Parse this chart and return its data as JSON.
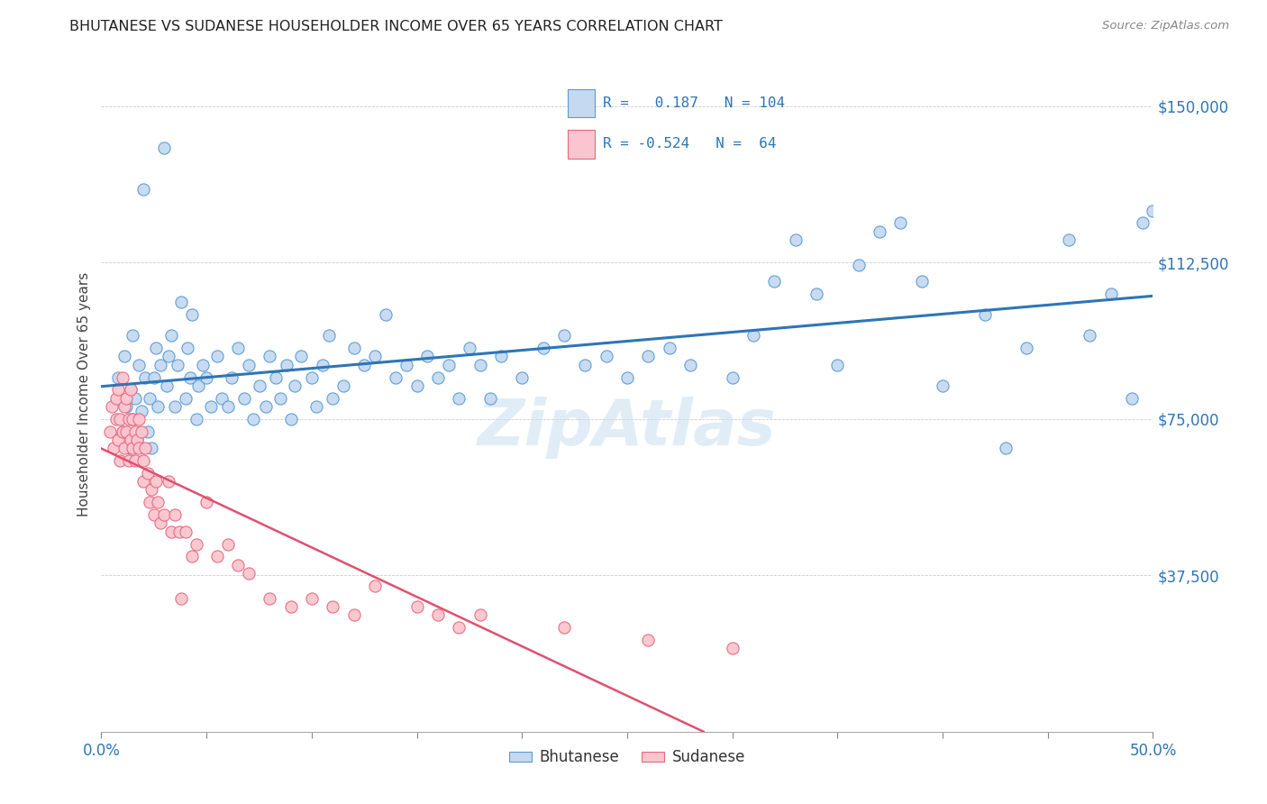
{
  "title": "BHUTANESE VS SUDANESE HOUSEHOLDER INCOME OVER 65 YEARS CORRELATION CHART",
  "source": "Source: ZipAtlas.com",
  "ylabel": "Householder Income Over 65 years",
  "ytick_labels": [
    "$37,500",
    "$75,000",
    "$112,500",
    "$150,000"
  ],
  "ytick_values": [
    37500,
    75000,
    112500,
    150000
  ],
  "ymin": 0,
  "ymax": 162000,
  "xmin": 0.0,
  "xmax": 0.5,
  "bhutanese_fill": "#c5d9f0",
  "bhutanese_edge": "#5b9bd5",
  "sudanese_fill": "#f9c6d0",
  "sudanese_edge": "#e8687c",
  "bhutanese_line_color": "#2e75b6",
  "sudanese_line_color": "#e05070",
  "text_color_blue": "#2e75b6",
  "tick_color": "#2e75b6",
  "watermark": "ZipAtlas",
  "bhutanese_R": 0.187,
  "bhutanese_N": 104,
  "sudanese_R": -0.524,
  "sudanese_N": 64,
  "bhutanese_scatter_x": [
    0.008,
    0.01,
    0.011,
    0.012,
    0.013,
    0.014,
    0.015,
    0.015,
    0.016,
    0.017,
    0.018,
    0.019,
    0.02,
    0.021,
    0.022,
    0.023,
    0.024,
    0.025,
    0.026,
    0.027,
    0.028,
    0.03,
    0.031,
    0.032,
    0.033,
    0.035,
    0.036,
    0.038,
    0.04,
    0.041,
    0.042,
    0.043,
    0.045,
    0.046,
    0.048,
    0.05,
    0.052,
    0.055,
    0.057,
    0.06,
    0.062,
    0.065,
    0.068,
    0.07,
    0.072,
    0.075,
    0.078,
    0.08,
    0.083,
    0.085,
    0.088,
    0.09,
    0.092,
    0.095,
    0.1,
    0.102,
    0.105,
    0.108,
    0.11,
    0.115,
    0.12,
    0.125,
    0.13,
    0.135,
    0.14,
    0.145,
    0.15,
    0.155,
    0.16,
    0.165,
    0.17,
    0.175,
    0.18,
    0.185,
    0.19,
    0.2,
    0.21,
    0.22,
    0.23,
    0.24,
    0.25,
    0.26,
    0.27,
    0.28,
    0.3,
    0.31,
    0.32,
    0.33,
    0.34,
    0.35,
    0.36,
    0.37,
    0.38,
    0.39,
    0.4,
    0.42,
    0.43,
    0.44,
    0.46,
    0.47,
    0.48,
    0.49,
    0.495,
    0.5
  ],
  "bhutanese_scatter_y": [
    85000,
    72000,
    90000,
    78000,
    68000,
    82000,
    95000,
    75000,
    80000,
    70000,
    88000,
    77000,
    130000,
    85000,
    72000,
    80000,
    68000,
    85000,
    92000,
    78000,
    88000,
    140000,
    83000,
    90000,
    95000,
    78000,
    88000,
    103000,
    80000,
    92000,
    85000,
    100000,
    75000,
    83000,
    88000,
    85000,
    78000,
    90000,
    80000,
    78000,
    85000,
    92000,
    80000,
    88000,
    75000,
    83000,
    78000,
    90000,
    85000,
    80000,
    88000,
    75000,
    83000,
    90000,
    85000,
    78000,
    88000,
    95000,
    80000,
    83000,
    92000,
    88000,
    90000,
    100000,
    85000,
    88000,
    83000,
    90000,
    85000,
    88000,
    80000,
    92000,
    88000,
    80000,
    90000,
    85000,
    92000,
    95000,
    88000,
    90000,
    85000,
    90000,
    92000,
    88000,
    85000,
    95000,
    108000,
    118000,
    105000,
    88000,
    112000,
    120000,
    122000,
    108000,
    83000,
    100000,
    68000,
    92000,
    118000,
    95000,
    105000,
    80000,
    122000,
    125000
  ],
  "sudanese_scatter_x": [
    0.004,
    0.005,
    0.006,
    0.007,
    0.007,
    0.008,
    0.008,
    0.009,
    0.009,
    0.01,
    0.01,
    0.011,
    0.011,
    0.012,
    0.012,
    0.013,
    0.013,
    0.014,
    0.014,
    0.015,
    0.015,
    0.016,
    0.016,
    0.017,
    0.018,
    0.018,
    0.019,
    0.02,
    0.02,
    0.021,
    0.022,
    0.023,
    0.024,
    0.025,
    0.026,
    0.027,
    0.028,
    0.03,
    0.032,
    0.033,
    0.035,
    0.037,
    0.038,
    0.04,
    0.043,
    0.045,
    0.05,
    0.055,
    0.06,
    0.065,
    0.07,
    0.08,
    0.09,
    0.1,
    0.11,
    0.12,
    0.13,
    0.15,
    0.16,
    0.17,
    0.18,
    0.22,
    0.26,
    0.3
  ],
  "sudanese_scatter_y": [
    72000,
    78000,
    68000,
    75000,
    80000,
    70000,
    82000,
    75000,
    65000,
    85000,
    72000,
    78000,
    68000,
    72000,
    80000,
    75000,
    65000,
    82000,
    70000,
    75000,
    68000,
    72000,
    65000,
    70000,
    68000,
    75000,
    72000,
    60000,
    65000,
    68000,
    62000,
    55000,
    58000,
    52000,
    60000,
    55000,
    50000,
    52000,
    60000,
    48000,
    52000,
    48000,
    32000,
    48000,
    42000,
    45000,
    55000,
    42000,
    45000,
    40000,
    38000,
    32000,
    30000,
    32000,
    30000,
    28000,
    35000,
    30000,
    28000,
    25000,
    28000,
    25000,
    22000,
    20000
  ]
}
